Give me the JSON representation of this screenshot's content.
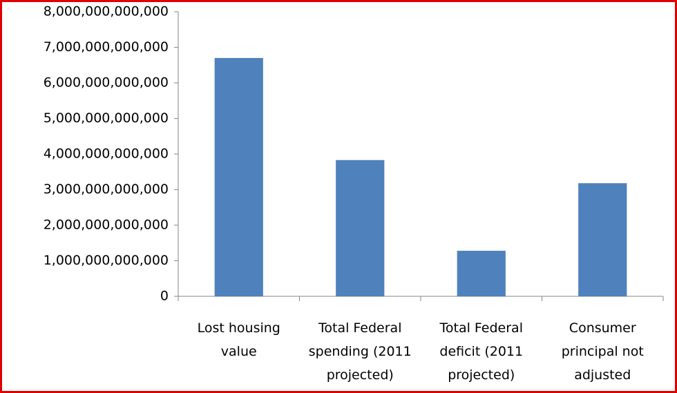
{
  "chart_data": {
    "type": "bar",
    "categories": [
      "Lost housing value",
      "Total Federal spending (2011 projected)",
      "Total Federal deficit (2011 projected)",
      "Consumer principal not adjusted"
    ],
    "values": [
      6700000000000,
      3830000000000,
      1280000000000,
      3180000000000
    ],
    "color": "#4f81bd",
    "ylim": [
      0,
      8000000000000
    ],
    "yticks": [
      0,
      {
        "value": 1000000000000,
        "label": "1,000,000,000,000"
      },
      {
        "value": 2000000000000,
        "label": "2,000,000,000,000"
      },
      {
        "value": 3000000000000,
        "label": "3,000,000,000,000"
      },
      {
        "value": 4000000000000,
        "label": "4,000,000,000,000"
      },
      {
        "value": 5000000000000,
        "label": "5,000,000,000,000"
      },
      {
        "value": 6000000000000,
        "label": "6,000,000,000,000"
      },
      {
        "value": 7000000000000,
        "label": "7,000,000,000,000"
      },
      {
        "value": 8000000000000,
        "label": "8,000,000,000,000"
      }
    ],
    "grid": false
  }
}
